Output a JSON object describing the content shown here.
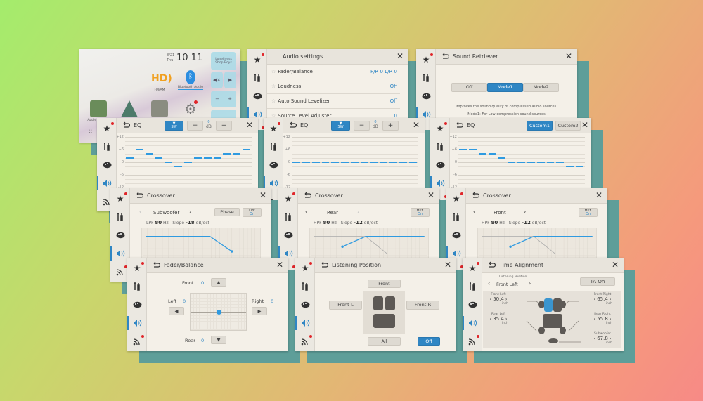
{
  "colors": {
    "accent": "#2f86c4",
    "eq_bar": "#2f9ae0",
    "shadow": "#5e9e99",
    "notification_dot": "#e0262a"
  },
  "sidebar_icons": [
    "star-icon",
    "tools-icon",
    "palette-icon",
    "speaker-icon",
    "wireless-icon"
  ],
  "common": {
    "close": "✕"
  },
  "home": {
    "date": "8/21",
    "day": "Thu",
    "time": "10 11",
    "song": "Loneliness",
    "artist": "Shop Boys",
    "apps": [
      {
        "label": "FM/AM"
      },
      {
        "label": "Bluetooth Audio"
      },
      {
        "label": "Apple CarPlay"
      },
      {
        "label": "Android Auto"
      },
      {
        "label": "WebLink"
      },
      {
        "label": "Settings"
      }
    ],
    "controls": {
      "mute": "◀×",
      "play": "▶",
      "minus": "−",
      "plus": "+",
      "prev": "⏮",
      "next": "⏭"
    }
  },
  "audio_settings": {
    "title": "Audio settings",
    "items": [
      {
        "label": "Fader/Balance",
        "value": "F/R 0 L/R 0"
      },
      {
        "label": "Loudness",
        "value": "Off"
      },
      {
        "label": "Auto Sound Levelizer",
        "value": "Off"
      },
      {
        "label": "Source Level Adjuster",
        "value": "0"
      }
    ]
  },
  "sound_retriever": {
    "title": "Sound Retriever",
    "options": [
      "Off",
      "Mode1",
      "Mode2"
    ],
    "selected": "Mode1",
    "desc1": "Improves the sound quality of compressed audio sources.",
    "desc2": "Mode1: For Low-compression sound sources"
  },
  "eq": [
    {
      "title": "EQ",
      "sw": "SW",
      "minus": "−",
      "plus": "+",
      "level": "0",
      "unit": "dB",
      "yticks": [
        "+12",
        "+6",
        "0",
        "-6",
        "-12"
      ],
      "ylim": [
        -12,
        12
      ],
      "values": [
        2,
        6,
        4,
        2,
        0,
        -2,
        0,
        2,
        2,
        2,
        4,
        4,
        6
      ]
    },
    {
      "title": "EQ",
      "sw": "SW",
      "minus": "−",
      "plus": "+",
      "level": "0",
      "unit": "dB",
      "yticks": [
        "+12",
        "+6",
        "0",
        "-6",
        "-12"
      ],
      "ylim": [
        -12,
        12
      ],
      "values": [
        0,
        0,
        0,
        0,
        0,
        0,
        0,
        0,
        0,
        0,
        0,
        0,
        0
      ]
    },
    {
      "title": "EQ",
      "presets": [
        "Custom1",
        "Custom2"
      ],
      "selected": "Custom1",
      "yticks": [
        "+12",
        "+6",
        "0",
        "-6",
        "-12"
      ],
      "ylim": [
        -12,
        12
      ],
      "values": [
        6,
        6,
        4,
        4,
        2,
        0,
        0,
        0,
        0,
        0,
        0,
        -2,
        -2
      ]
    }
  ],
  "crossover": [
    {
      "title": "Crossover",
      "speaker": "Subwoofer",
      "phase": "Phase",
      "filter": "LPF",
      "filter_state": "On",
      "freq_label": "LPF",
      "freq": "80",
      "freq_unit": "Hz",
      "slope_label": "Slope",
      "slope": "-18",
      "slope_unit": "dB/oct"
    },
    {
      "title": "Crossover",
      "speaker": "Rear",
      "filter": "HPF",
      "filter_state": "On",
      "freq_label": "HPF",
      "freq": "80",
      "freq_unit": "Hz",
      "slope_label": "Slope",
      "slope": "-12",
      "slope_unit": "dB/oct"
    },
    {
      "title": "Crossover",
      "speaker": "Front",
      "filter": "HPF",
      "filter_state": "On",
      "freq_label": "HPF",
      "freq": "80",
      "freq_unit": "Hz",
      "slope_label": "Slope",
      "slope": "-12",
      "slope_unit": "dB/oct"
    }
  ],
  "fader": {
    "title": "Fader/Balance",
    "front": "Front",
    "front_val": "0",
    "rear": "Rear",
    "rear_val": "0",
    "left": "Left",
    "left_val": "0",
    "right": "Right",
    "right_val": "0"
  },
  "listening": {
    "title": "Listening Position",
    "front": "Front",
    "front_l": "Front-L",
    "front_r": "Front-R",
    "all": "All",
    "off": "Off"
  },
  "time_alignment": {
    "title": "Time Alignment",
    "lp_label": "Listening Position",
    "lp_value": "Front Left",
    "ta": "TA On",
    "speakers": [
      {
        "label": "Front Left",
        "value": "50.4",
        "unit": "inch"
      },
      {
        "label": "Front Right",
        "value": "65.4",
        "unit": "inch"
      },
      {
        "label": "Rear Left",
        "value": "35.4",
        "unit": "inch"
      },
      {
        "label": "Rear Right",
        "value": "55.8",
        "unit": "inch"
      },
      {
        "label": "Subwoofer",
        "value": "67.8",
        "unit": "inch"
      }
    ]
  }
}
